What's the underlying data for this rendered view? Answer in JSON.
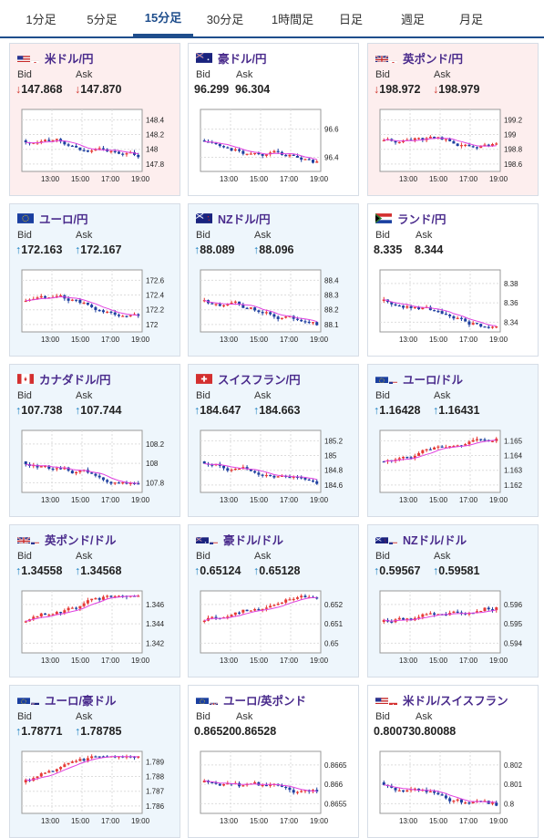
{
  "tabs": [
    {
      "label": "1分足",
      "active": false
    },
    {
      "label": "5分足",
      "active": false
    },
    {
      "label": "15分足",
      "active": true
    },
    {
      "label": "30分足",
      "active": false
    },
    {
      "label": "1時間足",
      "active": false
    },
    {
      "label": "日足",
      "active": false
    },
    {
      "label": "週足",
      "active": false
    },
    {
      "label": "月足",
      "active": false
    }
  ],
  "colors": {
    "accent": "#1f4e8c",
    "title": "#4a2b8c",
    "up": "#1a7fc1",
    "down": "#d0342c",
    "bg_down": "#fdeeee",
    "bg_up": "#eef6fc",
    "bg_neutral": "#ffffff",
    "ma": "#e040e0",
    "candle_up": "#e53935",
    "candle_down": "#1e3fa0"
  },
  "labels": {
    "bid": "Bid",
    "ask": "Ask"
  },
  "x_ticks": [
    "13:00",
    "15:00",
    "17:00",
    "19:00"
  ],
  "cards": [
    {
      "name": "usdjpy",
      "title": "米ドル/円",
      "flag": "us-jp-flag",
      "bg": "down",
      "dir": "down",
      "arrow": "↓",
      "bid": "147.868",
      "ask": "147.870",
      "y_ticks": [
        "148.4",
        "148.2",
        "148",
        "147.8"
      ],
      "trend": "down"
    },
    {
      "name": "audjpy",
      "title": "豪ドル/円",
      "flag": "au-flag",
      "bg": "neutral",
      "dir": "none",
      "arrow": "",
      "bid": "96.299",
      "ask": "96.304",
      "y_ticks": [
        "96.6",
        "96.4"
      ],
      "trend": "down"
    },
    {
      "name": "gbpjpy",
      "title": "英ポンド/円",
      "flag": "gb-jp-flag",
      "bg": "down",
      "dir": "down",
      "arrow": "↓",
      "bid": "198.972",
      "ask": "198.979",
      "y_ticks": [
        "199.2",
        "199",
        "198.8",
        "198.6"
      ],
      "trend": "flat"
    },
    {
      "name": "eurjpy",
      "title": "ユーロ/円",
      "flag": "eu-flag",
      "bg": "up",
      "dir": "up",
      "arrow": "↑",
      "bid": "172.163",
      "ask": "172.167",
      "y_ticks": [
        "172.6",
        "172.4",
        "172.2",
        "172"
      ],
      "trend": "down"
    },
    {
      "name": "nzdjpy",
      "title": "NZドル/円",
      "flag": "nz-flag",
      "bg": "up",
      "dir": "up",
      "arrow": "↑",
      "bid": "88.089",
      "ask": "88.096",
      "y_ticks": [
        "88.4",
        "88.3",
        "88.2",
        "88.1"
      ],
      "trend": "down"
    },
    {
      "name": "zarjpy",
      "title": "ランド/円",
      "flag": "za-flag",
      "bg": "neutral",
      "dir": "none",
      "arrow": "",
      "bid": "8.335",
      "ask": "8.344",
      "y_ticks": [
        "8.38",
        "8.36",
        "8.34"
      ],
      "trend": "down"
    },
    {
      "name": "cadjpy",
      "title": "カナダドル/円",
      "flag": "ca-flag",
      "bg": "up",
      "dir": "up",
      "arrow": "↑",
      "bid": "107.738",
      "ask": "107.744",
      "y_ticks": [
        "108.2",
        "108",
        "107.8"
      ],
      "trend": "down"
    },
    {
      "name": "chfjpy",
      "title": "スイスフラン/円",
      "flag": "ch-flag",
      "bg": "up",
      "dir": "up",
      "arrow": "↑",
      "bid": "184.647",
      "ask": "184.663",
      "y_ticks": [
        "185.2",
        "185",
        "184.8",
        "184.6"
      ],
      "trend": "down"
    },
    {
      "name": "eurusd",
      "title": "ユーロ/ドル",
      "flag": "eu-us-flag",
      "bg": "up",
      "dir": "up",
      "arrow": "↑",
      "bid": "1.16428",
      "ask": "1.16431",
      "y_ticks": [
        "1.165",
        "1.164",
        "1.163",
        "1.162"
      ],
      "trend": "up"
    },
    {
      "name": "gbpusd",
      "title": "英ポンド/ドル",
      "flag": "gb-us-flag",
      "bg": "up",
      "dir": "up",
      "arrow": "↑",
      "bid": "1.34558",
      "ask": "1.34568",
      "y_ticks": [
        "1.346",
        "1.344",
        "1.342"
      ],
      "trend": "up"
    },
    {
      "name": "audusd",
      "title": "豪ドル/ドル",
      "flag": "au-us-flag",
      "bg": "up",
      "dir": "up",
      "arrow": "↑",
      "bid": "0.65124",
      "ask": "0.65128",
      "y_ticks": [
        "0.652",
        "0.651",
        "0.65"
      ],
      "trend": "up"
    },
    {
      "name": "nzdusd",
      "title": "NZドル/ドル",
      "flag": "nz-us-flag",
      "bg": "up",
      "dir": "up",
      "arrow": "↑",
      "bid": "0.59567",
      "ask": "0.59581",
      "y_ticks": [
        "0.596",
        "0.595",
        "0.594"
      ],
      "trend": "up"
    },
    {
      "name": "euraud",
      "title": "ユーロ/豪ドル",
      "flag": "eu-au-flag",
      "bg": "up",
      "dir": "up",
      "arrow": "↑",
      "bid": "1.78771",
      "ask": "1.78785",
      "y_ticks": [
        "1.789",
        "1.788",
        "1.787",
        "1.786"
      ],
      "trend": "up"
    },
    {
      "name": "eurgbp",
      "title": "ユーロ/英ポンド",
      "flag": "eu-gb-flag",
      "bg": "neutral",
      "dir": "none",
      "arrow": "",
      "bid": "0.86520",
      "ask": "0.86528",
      "y_ticks": [
        "0.8665",
        "0.866",
        "0.8655"
      ],
      "trend": "down"
    },
    {
      "name": "usdchf",
      "title": "米ドル/スイスフラン",
      "flag": "us-ch-flag",
      "bg": "neutral",
      "dir": "none",
      "arrow": "",
      "bid": "0.80073",
      "ask": "0.80088",
      "y_ticks": [
        "0.802",
        "0.801",
        "0.8"
      ],
      "trend": "down"
    }
  ]
}
